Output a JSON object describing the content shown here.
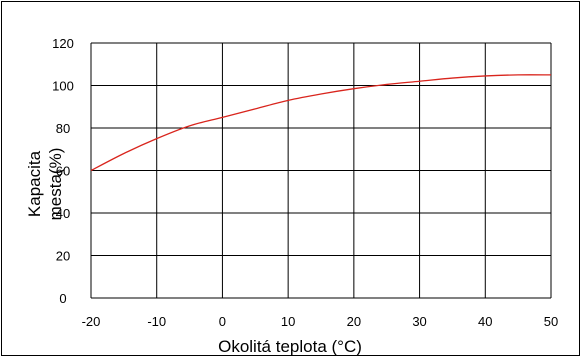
{
  "chart_data": {
    "type": "line",
    "xlabel": "Okolitá teplota (°C)",
    "ylabel_lines": [
      "Kapacita",
      "mesta(%)"
    ],
    "xlim": [
      -20,
      50
    ],
    "ylim": [
      0,
      120
    ],
    "xticks": [
      "-20",
      "-10",
      "0",
      "10",
      "20",
      "30",
      "40",
      "50"
    ],
    "yticks": [
      "0",
      "20",
      "40",
      "60",
      "80",
      "100",
      "120"
    ],
    "grid": true,
    "series": [
      {
        "color": "#d9251d",
        "x": [
          -20,
          -15,
          -10,
          -5,
          0,
          5,
          10,
          15,
          20,
          25,
          30,
          35,
          40,
          45,
          50
        ],
        "y": [
          60,
          68,
          75,
          81,
          85,
          89,
          93,
          96,
          98.5,
          100.5,
          102,
          103.5,
          104.5,
          105,
          105
        ]
      }
    ]
  }
}
